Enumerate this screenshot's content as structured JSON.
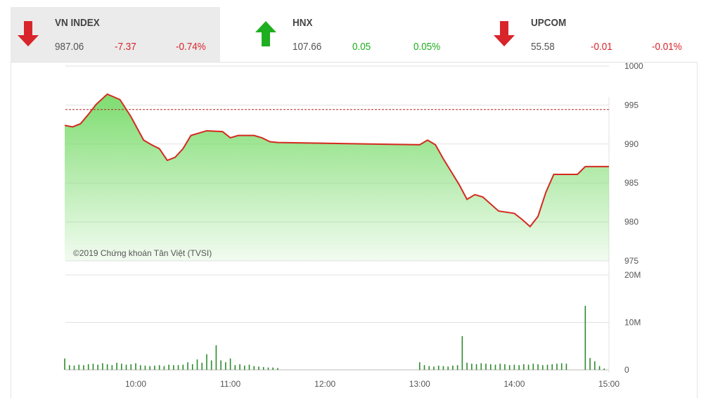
{
  "indices": [
    {
      "name": "VN INDEX",
      "value": "987.06",
      "change": "-7.37",
      "percent": "-0.74%",
      "direction": "down",
      "selected": true
    },
    {
      "name": "HNX",
      "value": "107.66",
      "change": "0.05",
      "percent": "0.05%",
      "direction": "up",
      "selected": false
    },
    {
      "name": "UPCOM",
      "value": "55.58",
      "change": "-0.01",
      "percent": "-0.01%",
      "direction": "down",
      "selected": false
    }
  ],
  "colors": {
    "up": "#1fae1f",
    "down": "#d8252b",
    "line": "#d42a1f",
    "fill": "#7ddc6f",
    "volume": "#2e8b2e"
  },
  "chart_data": [
    {
      "type": "area",
      "reference": 994.43,
      "ylim": [
        975,
        1000
      ],
      "yticks": [
        "1000",
        "995",
        "990",
        "985",
        "980",
        "975"
      ],
      "xticks": [
        "10:00",
        "11:00",
        "12:00",
        "13:00",
        "14:00",
        "15:00"
      ],
      "watermark": "©2019 Chứng khoán Tân Việt (TVSI)",
      "points": [
        [
          "09:15",
          992.4
        ],
        [
          "09:20",
          992.2
        ],
        [
          "09:25",
          992.6
        ],
        [
          "09:30",
          993.8
        ],
        [
          "09:35",
          995.1
        ],
        [
          "09:42",
          996.4
        ],
        [
          "09:50",
          995.7
        ],
        [
          "09:57",
          993.5
        ],
        [
          "10:05",
          990.5
        ],
        [
          "10:10",
          989.9
        ],
        [
          "10:15",
          989.4
        ],
        [
          "10:20",
          987.9
        ],
        [
          "10:25",
          988.3
        ],
        [
          "10:30",
          989.4
        ],
        [
          "10:35",
          991.1
        ],
        [
          "10:45",
          991.7
        ],
        [
          "10:55",
          991.6
        ],
        [
          "11:00",
          990.8
        ],
        [
          "11:05",
          991.1
        ],
        [
          "11:15",
          991.1
        ],
        [
          "11:20",
          990.8
        ],
        [
          "11:25",
          990.3
        ],
        [
          "11:30",
          990.2
        ],
        [
          "13:00",
          989.9
        ],
        [
          "13:05",
          990.5
        ],
        [
          "13:10",
          989.9
        ],
        [
          "13:15",
          988.1
        ],
        [
          "13:25",
          984.8
        ],
        [
          "13:30",
          982.9
        ],
        [
          "13:35",
          983.5
        ],
        [
          "13:40",
          983.2
        ],
        [
          "13:50",
          981.4
        ],
        [
          "14:00",
          981.1
        ],
        [
          "14:05",
          980.3
        ],
        [
          "14:10",
          979.4
        ],
        [
          "14:15",
          980.7
        ],
        [
          "14:20",
          983.8
        ],
        [
          "14:25",
          986.1
        ],
        [
          "14:40",
          986.1
        ],
        [
          "14:45",
          987.1
        ],
        [
          "15:00",
          987.1
        ]
      ]
    },
    {
      "type": "bar",
      "ylim": [
        0,
        20
      ],
      "yticks": [
        "20M",
        "10M",
        "0"
      ],
      "unit": "M",
      "bars": [
        [
          "09:15",
          2.4
        ],
        [
          "09:18",
          1.0
        ],
        [
          "09:21",
          0.9
        ],
        [
          "09:24",
          1.1
        ],
        [
          "09:27",
          1.0
        ],
        [
          "09:30",
          1.2
        ],
        [
          "09:33",
          1.3
        ],
        [
          "09:36",
          1.1
        ],
        [
          "09:39",
          1.4
        ],
        [
          "09:42",
          1.2
        ],
        [
          "09:45",
          1.0
        ],
        [
          "09:48",
          1.5
        ],
        [
          "09:51",
          1.3
        ],
        [
          "09:54",
          1.1
        ],
        [
          "09:57",
          1.2
        ],
        [
          "10:00",
          1.4
        ],
        [
          "10:03",
          1.0
        ],
        [
          "10:06",
          0.9
        ],
        [
          "10:09",
          0.8
        ],
        [
          "10:12",
          0.9
        ],
        [
          "10:15",
          1.0
        ],
        [
          "10:18",
          0.8
        ],
        [
          "10:21",
          1.1
        ],
        [
          "10:24",
          1.0
        ],
        [
          "10:27",
          1.0
        ],
        [
          "10:30",
          1.1
        ],
        [
          "10:33",
          1.6
        ],
        [
          "10:36",
          1.2
        ],
        [
          "10:39",
          2.2
        ],
        [
          "10:42",
          1.5
        ],
        [
          "10:45",
          3.3
        ],
        [
          "10:48",
          2.0
        ],
        [
          "10:51",
          5.2
        ],
        [
          "10:54",
          2.0
        ],
        [
          "10:57",
          1.6
        ],
        [
          "11:00",
          2.4
        ],
        [
          "11:03",
          1.0
        ],
        [
          "11:06",
          1.2
        ],
        [
          "11:09",
          0.9
        ],
        [
          "11:12",
          1.1
        ],
        [
          "11:15",
          0.8
        ],
        [
          "11:18",
          0.7
        ],
        [
          "11:21",
          0.6
        ],
        [
          "11:24",
          0.5
        ],
        [
          "11:27",
          0.5
        ],
        [
          "11:30",
          0.4
        ],
        [
          "13:00",
          1.6
        ],
        [
          "13:03",
          1.0
        ],
        [
          "13:06",
          0.8
        ],
        [
          "13:09",
          0.7
        ],
        [
          "13:12",
          0.9
        ],
        [
          "13:15",
          0.8
        ],
        [
          "13:18",
          0.7
        ],
        [
          "13:21",
          0.9
        ],
        [
          "13:24",
          1.0
        ],
        [
          "13:27",
          7.1
        ],
        [
          "13:30",
          1.5
        ],
        [
          "13:33",
          1.3
        ],
        [
          "13:36",
          1.2
        ],
        [
          "13:39",
          1.4
        ],
        [
          "13:42",
          1.3
        ],
        [
          "13:45",
          1.2
        ],
        [
          "13:48",
          1.1
        ],
        [
          "13:51",
          1.3
        ],
        [
          "13:54",
          1.2
        ],
        [
          "13:57",
          1.0
        ],
        [
          "14:00",
          1.1
        ],
        [
          "14:03",
          1.0
        ],
        [
          "14:06",
          1.2
        ],
        [
          "14:09",
          1.1
        ],
        [
          "14:12",
          1.3
        ],
        [
          "14:15",
          1.2
        ],
        [
          "14:18",
          1.0
        ],
        [
          "14:21",
          1.1
        ],
        [
          "14:24",
          1.2
        ],
        [
          "14:27",
          1.3
        ],
        [
          "14:30",
          1.4
        ],
        [
          "14:33",
          1.3
        ],
        [
          "14:45",
          13.5
        ],
        [
          "14:48",
          2.5
        ],
        [
          "14:51",
          1.8
        ],
        [
          "14:54",
          0.8
        ],
        [
          "14:57",
          0.3
        ]
      ]
    }
  ]
}
